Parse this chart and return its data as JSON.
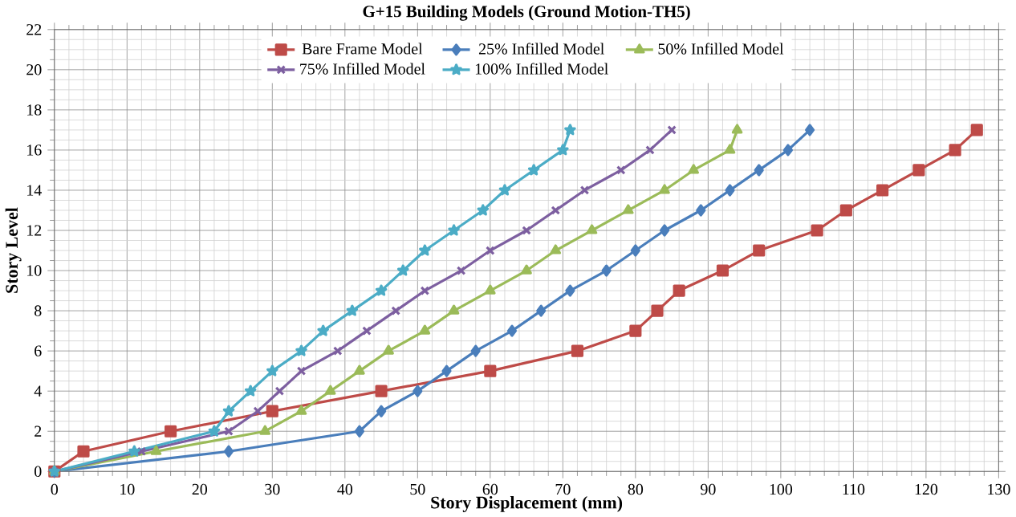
{
  "chart_data": {
    "type": "line",
    "title": "G+15 Building Models (Ground Motion-TH5)",
    "xlabel": "Story Displacement (mm)",
    "ylabel": "Story Level",
    "xlim": [
      0,
      130
    ],
    "xticks": [
      0,
      10,
      20,
      30,
      40,
      50,
      60,
      70,
      80,
      90,
      100,
      110,
      120,
      130
    ],
    "ylim": [
      0,
      22
    ],
    "yticks": [
      0,
      2,
      4,
      6,
      8,
      10,
      12,
      14,
      16,
      18,
      20,
      22
    ],
    "grid": true,
    "legend": "top",
    "series": [
      {
        "name": "Bare Frame Model",
        "color": "#be4b48",
        "marker": "square",
        "x": [
          0,
          4,
          16,
          30,
          45,
          60,
          72,
          80,
          83,
          86,
          92,
          97,
          105,
          109,
          114,
          119,
          124,
          127
        ],
        "values": [
          0,
          1,
          2,
          3,
          4,
          5,
          6,
          7,
          8,
          9,
          10,
          11,
          12,
          13,
          14,
          15,
          16,
          17
        ]
      },
      {
        "name": "25% Infilled Model",
        "color": "#4a7ebb",
        "marker": "diamond",
        "x": [
          0,
          24,
          42,
          45,
          50,
          54,
          58,
          63,
          67,
          71,
          76,
          80,
          84,
          89,
          93,
          97,
          101,
          104
        ],
        "values": [
          0,
          1,
          2,
          3,
          4,
          5,
          6,
          7,
          8,
          9,
          10,
          11,
          12,
          13,
          14,
          15,
          16,
          17
        ]
      },
      {
        "name": "50% Infilled Model",
        "color": "#9bbb59",
        "marker": "triangle",
        "x": [
          0,
          14,
          29,
          34,
          38,
          42,
          46,
          51,
          55,
          60,
          65,
          69,
          74,
          79,
          84,
          88,
          93,
          94
        ],
        "values": [
          0,
          1,
          2,
          3,
          4,
          5,
          6,
          7,
          8,
          9,
          10,
          11,
          12,
          13,
          14,
          15,
          16,
          17
        ]
      },
      {
        "name": "75% Infilled Model",
        "color": "#7d5fa0",
        "marker": "cross",
        "x": [
          0,
          12,
          24,
          28,
          31,
          34,
          39,
          43,
          47,
          51,
          56,
          60,
          65,
          69,
          73,
          78,
          82,
          85
        ],
        "values": [
          0,
          1,
          2,
          3,
          4,
          5,
          6,
          7,
          8,
          9,
          10,
          11,
          12,
          13,
          14,
          15,
          16,
          17
        ]
      },
      {
        "name": "100% Infilled Model",
        "color": "#4bacc6",
        "marker": "star",
        "x": [
          0,
          11,
          22,
          24,
          27,
          30,
          34,
          37,
          41,
          45,
          48,
          51,
          55,
          59,
          62,
          66,
          70,
          71
        ],
        "values": [
          0,
          1,
          2,
          3,
          4,
          5,
          6,
          7,
          8,
          9,
          10,
          11,
          12,
          13,
          14,
          15,
          16,
          17
        ]
      }
    ]
  }
}
